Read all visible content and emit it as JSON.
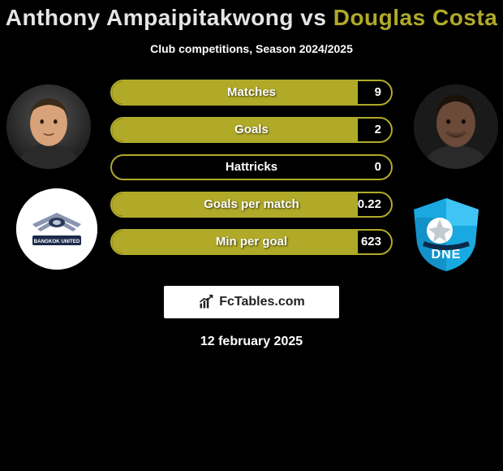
{
  "title": {
    "player1": "Anthony Ampaipitakwong",
    "player2": "Douglas Costa",
    "color1": "#e5e5e5",
    "color2": "#b0aa28"
  },
  "subtitle": "Club competitions, Season 2024/2025",
  "accent_color": "#b0aa28",
  "stats": [
    {
      "label": "Matches",
      "value": "9",
      "fill_pct": 88
    },
    {
      "label": "Goals",
      "value": "2",
      "fill_pct": 88
    },
    {
      "label": "Hattricks",
      "value": "0",
      "fill_pct": 0
    },
    {
      "label": "Goals per match",
      "value": "0.22",
      "fill_pct": 88
    },
    {
      "label": "Min per goal",
      "value": "623",
      "fill_pct": 88
    }
  ],
  "footer_site": "FcTables.com",
  "date": "12 february 2025",
  "player1_skin": "#d8a37a",
  "player2_skin": "#6b4a3a",
  "club1": {
    "bg": "#ffffff",
    "wing": "#8a95b0",
    "text": "BANGKOK UNITED"
  },
  "club2": {
    "shield": "#1aa8e0",
    "dark": "#0a2a4a"
  }
}
